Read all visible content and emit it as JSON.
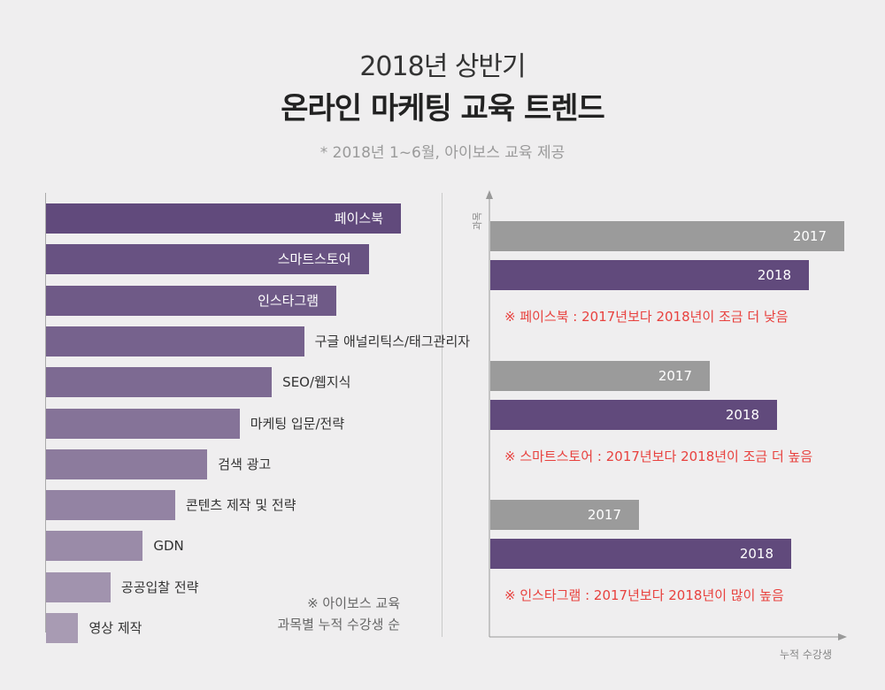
{
  "header": {
    "title_line1": "2018년 상반기",
    "title_line2": "온라인 마케팅 교육 트렌드",
    "subtitle": "* 2018년 1~6월, 아이보스 교육 제공"
  },
  "colors": {
    "bar_2018": "#614a7c",
    "bar_2017": "#9b9b9b",
    "left_gradient_start": "#614a7c",
    "left_gradient_end": "#a89bb3",
    "note": "#e8413e"
  },
  "left_note": [
    "※ 아이보스 교육",
    "과목별 누적 수강생 순"
  ],
  "right_axis": {
    "y_label": "과목",
    "x_label": "누적 수강생"
  },
  "chart_data": [
    {
      "type": "bar",
      "orientation": "horizontal",
      "categories": [
        "페이스북",
        "스마트스토어",
        "인스타그램",
        "구글 애널리틱스/태그관리자",
        "SEO/웹지식",
        "마케팅 입문/전략",
        "검색 광고",
        "콘텐츠 제작 및 전략",
        "GDN",
        "공공입찰 전략",
        "영상 제작"
      ],
      "values": [
        11,
        10,
        9,
        8,
        7,
        6,
        5,
        4,
        3,
        2,
        1
      ],
      "label_inside": [
        true,
        true,
        true,
        false,
        false,
        false,
        false,
        false,
        false,
        false,
        false
      ],
      "note": "rank order by cumulative students (relative bar lengths)"
    },
    {
      "type": "bar",
      "orientation": "horizontal",
      "groups": [
        {
          "name": "페이스북",
          "bars": [
            {
              "label": "2017",
              "value": 100
            },
            {
              "label": "2018",
              "value": 90
            }
          ],
          "note": "※ 페이스북 : 2017년보다 2018년이 조금 더 낮음"
        },
        {
          "name": "스마트스토어",
          "bars": [
            {
              "label": "2017",
              "value": 62
            },
            {
              "label": "2018",
              "value": 81
            }
          ],
          "note": "※ 스마트스토어 : 2017년보다 2018년이 조금 더 높음"
        },
        {
          "name": "인스타그램",
          "bars": [
            {
              "label": "2017",
              "value": 42
            },
            {
              "label": "2018",
              "value": 85
            }
          ],
          "note": "※ 인스타그램 : 2017년보다 2018년이 많이 높음"
        }
      ],
      "xlabel": "누적 수강생",
      "ylabel": "과목"
    }
  ]
}
